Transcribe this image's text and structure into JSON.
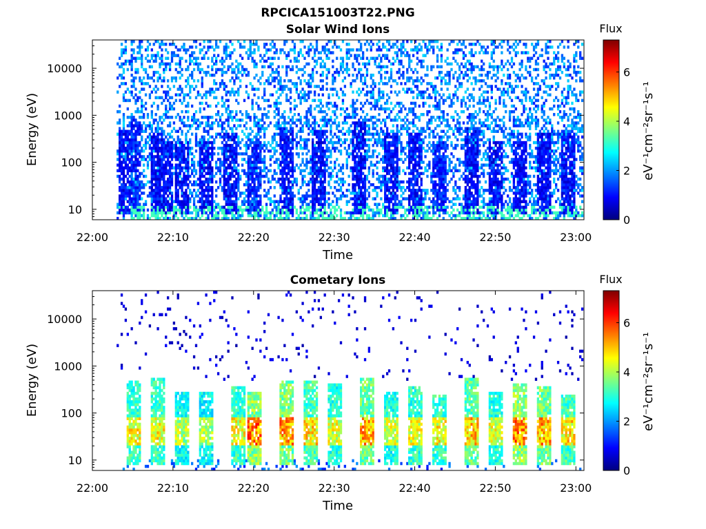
{
  "figure": {
    "title": "RPCICA151003T22.PNG"
  },
  "chart_data": [
    {
      "type": "heatmap",
      "title": "Solar Wind Ions",
      "xlabel": "Time",
      "ylabel": "Energy (eV)",
      "x_ticks": [
        "22:00",
        "22:10",
        "22:20",
        "22:30",
        "22:40",
        "22:50",
        "23:00"
      ],
      "x_range": [
        "22:00",
        "23:01"
      ],
      "y_ticks": [
        "10",
        "100",
        "1000",
        "10000"
      ],
      "y_scale": "log",
      "ylim": [
        6,
        40000
      ],
      "colorbar": {
        "label": "Flux",
        "unit": "eV⁻¹cm⁻²sr⁻¹s⁻¹",
        "ticks": [
          "0",
          "2",
          "4",
          "6"
        ],
        "range": [
          0,
          7.3
        ],
        "colormap": "jet"
      },
      "data_start": "22:03",
      "data_end": "23:00",
      "bursts": [
        {
          "time": "22:04",
          "peak_eV": 500,
          "level": 1.0
        },
        {
          "time": "22:05",
          "peak_eV": 800,
          "level": 1.2
        },
        {
          "time": "22:08",
          "peak_eV": 400,
          "level": 1.0
        },
        {
          "time": "22:09",
          "peak_eV": 300,
          "level": 1.0
        },
        {
          "time": "22:11",
          "peak_eV": 300,
          "level": 1.0
        },
        {
          "time": "22:14",
          "peak_eV": 300,
          "level": 1.0
        },
        {
          "time": "22:17",
          "peak_eV": 400,
          "level": 1.0
        },
        {
          "time": "22:20",
          "peak_eV": 300,
          "level": 1.2
        },
        {
          "time": "22:24",
          "peak_eV": 600,
          "level": 1.0
        },
        {
          "time": "22:28",
          "peak_eV": 500,
          "level": 1.0
        },
        {
          "time": "22:33",
          "peak_eV": 700,
          "level": 1.0
        },
        {
          "time": "22:37",
          "peak_eV": 400,
          "level": 1.0
        },
        {
          "time": "22:40",
          "peak_eV": 400,
          "level": 1.0
        },
        {
          "time": "22:43",
          "peak_eV": 300,
          "level": 1.2
        },
        {
          "time": "22:47",
          "peak_eV": 600,
          "level": 1.0
        },
        {
          "time": "22:50",
          "peak_eV": 300,
          "level": 1.0
        },
        {
          "time": "22:53",
          "peak_eV": 300,
          "level": 1.0
        },
        {
          "time": "22:56",
          "peak_eV": 400,
          "level": 1.0
        },
        {
          "time": "22:59",
          "peak_eV": 400,
          "level": 1.0
        }
      ],
      "band_eV": [
        10,
        60
      ],
      "background_level": 1.8
    },
    {
      "type": "heatmap",
      "title": "Cometary Ions",
      "xlabel": "Time",
      "ylabel": "Energy (eV)",
      "x_ticks": [
        "22:00",
        "22:10",
        "22:20",
        "22:30",
        "22:40",
        "22:50",
        "23:00"
      ],
      "x_range": [
        "22:00",
        "23:01"
      ],
      "y_ticks": [
        "10",
        "100",
        "1000",
        "10000"
      ],
      "y_scale": "log",
      "ylim": [
        6,
        40000
      ],
      "colorbar": {
        "label": "Flux",
        "unit": "eV⁻¹cm⁻²sr⁻¹s⁻¹",
        "ticks": [
          "0",
          "2",
          "4",
          "6"
        ],
        "range": [
          0,
          7.3
        ],
        "colormap": "jet"
      },
      "data_start": "22:03",
      "data_end": "23:00",
      "bursts": [
        {
          "time": "22:05",
          "peak_eV": 500,
          "level": 4.8
        },
        {
          "time": "22:08",
          "peak_eV": 550,
          "level": 4.8
        },
        {
          "time": "22:11",
          "peak_eV": 300,
          "level": 4.3
        },
        {
          "time": "22:14",
          "peak_eV": 300,
          "level": 4.2
        },
        {
          "time": "22:18",
          "peak_eV": 350,
          "level": 4.8
        },
        {
          "time": "22:20",
          "peak_eV": 300,
          "level": 5.8
        },
        {
          "time": "22:24",
          "peak_eV": 500,
          "level": 5.6
        },
        {
          "time": "22:27",
          "peak_eV": 500,
          "level": 5.0
        },
        {
          "time": "22:30",
          "peak_eV": 400,
          "level": 4.6
        },
        {
          "time": "22:34",
          "peak_eV": 600,
          "level": 5.4
        },
        {
          "time": "22:37",
          "peak_eV": 300,
          "level": 4.5
        },
        {
          "time": "22:40",
          "peak_eV": 350,
          "level": 4.7
        },
        {
          "time": "22:43",
          "peak_eV": 250,
          "level": 4.8
        },
        {
          "time": "22:47",
          "peak_eV": 600,
          "level": 5.2
        },
        {
          "time": "22:50",
          "peak_eV": 300,
          "level": 4.6
        },
        {
          "time": "22:53",
          "peak_eV": 400,
          "level": 5.8
        },
        {
          "time": "22:56",
          "peak_eV": 350,
          "level": 5.5
        },
        {
          "time": "22:59",
          "peak_eV": 250,
          "level": 5.0
        }
      ],
      "band_eV": [
        20,
        80
      ],
      "background_level": 0.3
    }
  ]
}
